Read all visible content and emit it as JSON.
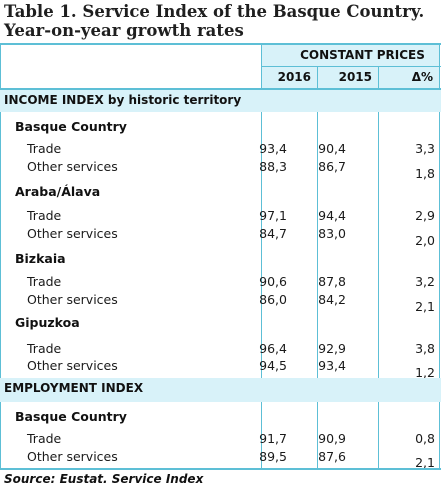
{
  "title": {
    "line1": "Table 1. Service Index of the Basque Country.",
    "line2": "Year-on-year growth rates"
  },
  "header": {
    "group": "CONSTANT PRICES",
    "col_2016": "2016",
    "col_2015": "2015",
    "col_delta": "Δ%"
  },
  "income": {
    "label": "INCOME INDEX by historic territory",
    "territories": [
      {
        "name": "Basque Country",
        "rows": [
          {
            "label": "Trade",
            "v2016": "93,4",
            "v2015": "90,4",
            "delta": "3,3"
          },
          {
            "label": "Other services",
            "v2016": "88,3",
            "v2015": "86,7",
            "delta": "1,8"
          }
        ]
      },
      {
        "name": "Araba/Álava",
        "rows": [
          {
            "label": "Trade",
            "v2016": "97,1",
            "v2015": "94,4",
            "delta": "2,9"
          },
          {
            "label": "Other services",
            "v2016": "84,7",
            "v2015": "83,0",
            "delta": "2,0"
          }
        ]
      },
      {
        "name": "Bizkaia",
        "rows": [
          {
            "label": "Trade",
            "v2016": "90,6",
            "v2015": "87,8",
            "delta": "3,2"
          },
          {
            "label": "Other services",
            "v2016": "86,0",
            "v2015": "84,2",
            "delta": "2,1"
          }
        ]
      },
      {
        "name": "Gipuzkoa",
        "rows": [
          {
            "label": "Trade",
            "v2016": "96,4",
            "v2015": "92,9",
            "delta": "3,8"
          },
          {
            "label": "Other services",
            "v2016": "94,5",
            "v2015": "93,4",
            "delta": "1,2"
          }
        ]
      }
    ]
  },
  "employment": {
    "label": "EMPLOYMENT INDEX",
    "territories": [
      {
        "name": "Basque Country",
        "rows": [
          {
            "label": "Trade",
            "v2016": "91,7",
            "v2015": "90,9",
            "delta": "0,8"
          },
          {
            "label": "Other services",
            "v2016": "89,5",
            "v2015": "87,6",
            "delta": "2,1"
          }
        ]
      }
    ]
  },
  "source": "Source: Eustat. Service Index",
  "colors": {
    "accent": "#5dbfd6",
    "band": "#d8f2f9"
  }
}
